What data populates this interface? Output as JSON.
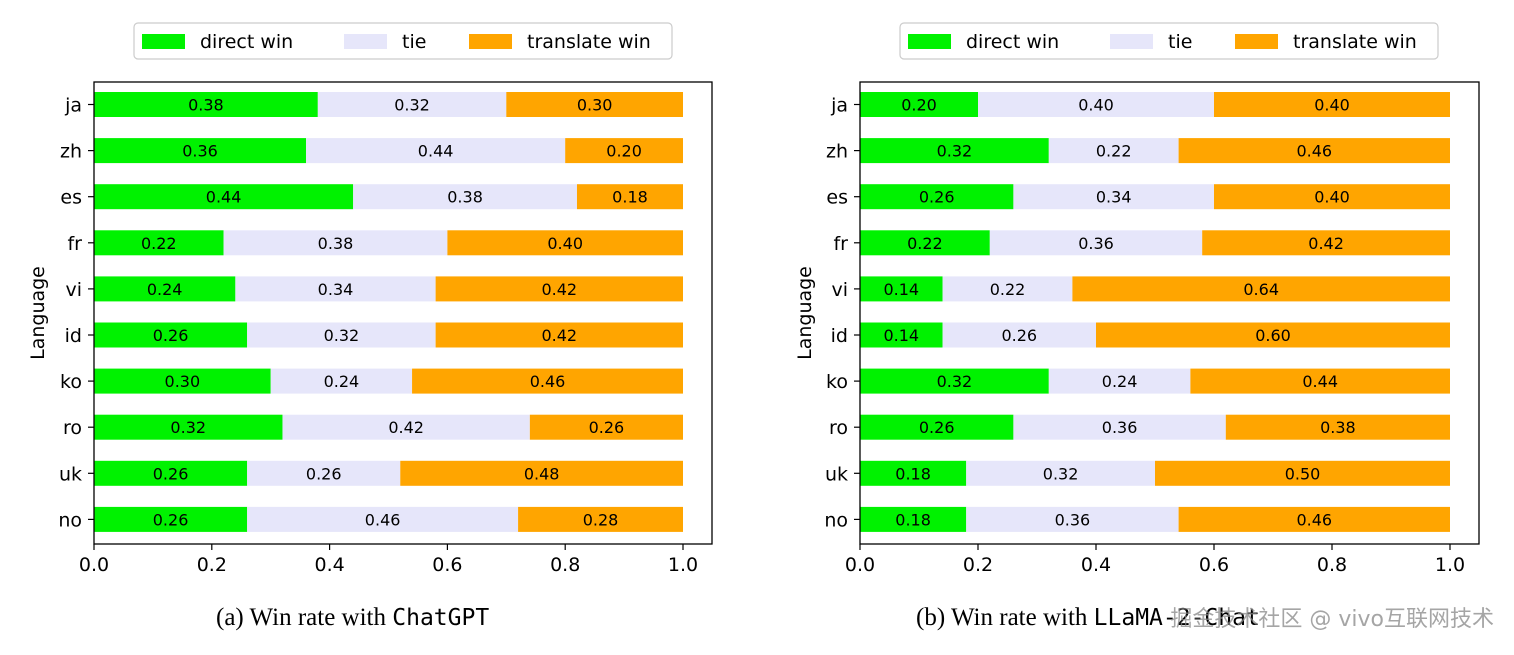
{
  "legend": {
    "direct": "direct win",
    "tie": "tie",
    "translate": "translate win"
  },
  "colors": {
    "direct": "#00f200",
    "tie": "#e6e6fa",
    "translate": "#ffa500"
  },
  "captions": [
    {
      "prefix": "(a) Win rate with ",
      "model": "ChatGPT"
    },
    {
      "prefix": "(b) Win rate with ",
      "model": "LLaMA-2-Chat"
    }
  ],
  "watermark": "掘金技术社区 @ vivo互联网技术",
  "chart_data": [
    {
      "type": "bar",
      "orientation": "horizontal-stacked",
      "ylabel": "Language",
      "xlim": [
        0,
        1
      ],
      "xticks": [
        "0.0",
        "0.2",
        "0.4",
        "0.6",
        "0.8",
        "1.0"
      ],
      "categories": [
        "ja",
        "zh",
        "es",
        "fr",
        "vi",
        "id",
        "ko",
        "ro",
        "uk",
        "no"
      ],
      "series": [
        {
          "name": "direct win",
          "values": [
            0.38,
            0.36,
            0.44,
            0.22,
            0.24,
            0.26,
            0.3,
            0.32,
            0.26,
            0.26
          ]
        },
        {
          "name": "tie",
          "values": [
            0.32,
            0.44,
            0.38,
            0.38,
            0.34,
            0.32,
            0.24,
            0.42,
            0.26,
            0.46
          ]
        },
        {
          "name": "translate win",
          "values": [
            0.3,
            0.2,
            0.18,
            0.4,
            0.42,
            0.42,
            0.46,
            0.26,
            0.48,
            0.28
          ]
        }
      ]
    },
    {
      "type": "bar",
      "orientation": "horizontal-stacked",
      "ylabel": "Language",
      "xlim": [
        0,
        1
      ],
      "xticks": [
        "0.0",
        "0.2",
        "0.4",
        "0.6",
        "0.8",
        "1.0"
      ],
      "categories": [
        "ja",
        "zh",
        "es",
        "fr",
        "vi",
        "id",
        "ko",
        "ro",
        "uk",
        "no"
      ],
      "series": [
        {
          "name": "direct win",
          "values": [
            0.2,
            0.32,
            0.26,
            0.22,
            0.14,
            0.14,
            0.32,
            0.26,
            0.18,
            0.18
          ]
        },
        {
          "name": "tie",
          "values": [
            0.4,
            0.22,
            0.34,
            0.36,
            0.22,
            0.26,
            0.24,
            0.36,
            0.32,
            0.36
          ]
        },
        {
          "name": "translate win",
          "values": [
            0.4,
            0.46,
            0.4,
            0.42,
            0.64,
            0.6,
            0.44,
            0.38,
            0.5,
            0.46
          ]
        }
      ]
    }
  ]
}
